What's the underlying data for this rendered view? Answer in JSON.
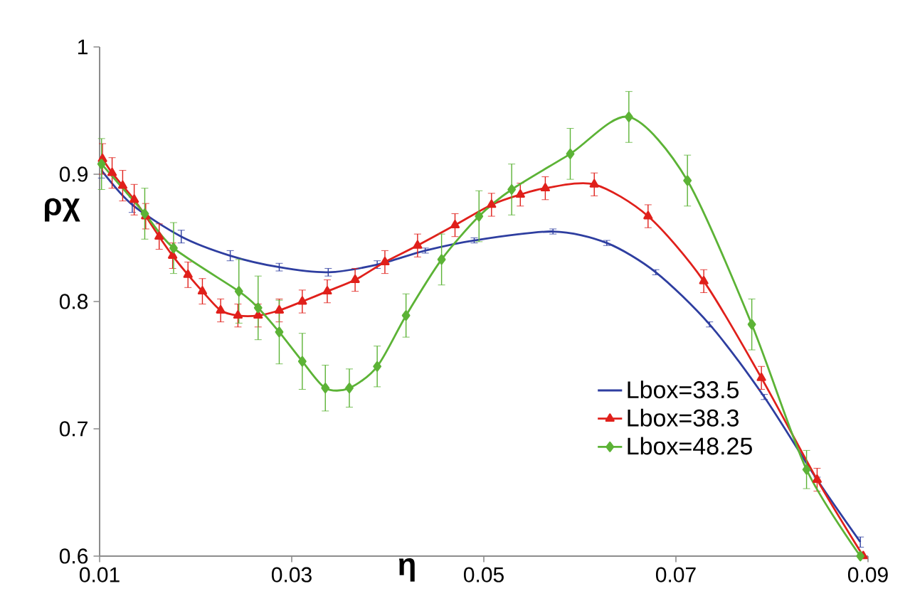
{
  "chart_data": {
    "type": "line",
    "xlabel": "η",
    "ylabel": "ρχ",
    "xlim": [
      0.01,
      0.09
    ],
    "xticks": [
      0.01,
      0.03,
      0.05,
      0.07,
      0.09
    ],
    "ylim": [
      0.6,
      1
    ],
    "yticks": [
      0.6,
      0.7,
      0.8,
      0.9,
      1
    ],
    "legend": "right",
    "grid": false,
    "series": [
      {
        "name": "Lbox=33.5",
        "color": "#2e3ea0",
        "marker": "none",
        "x": [
          0.0102,
          0.0134,
          0.0185,
          0.0236,
          0.0287,
          0.0338,
          0.0389,
          0.0439,
          0.049,
          0.0572,
          0.0628,
          0.0679,
          0.0735,
          0.0792,
          0.0847,
          0.0892
        ],
        "values": [
          0.903,
          0.876,
          0.851,
          0.836,
          0.827,
          0.823,
          0.829,
          0.84,
          0.848,
          0.855,
          0.846,
          0.823,
          0.782,
          0.725,
          0.66,
          0.611
        ],
        "errors": [
          0.006,
          0.006,
          0.005,
          0.004,
          0.003,
          0.003,
          0.003,
          0.002,
          0.002,
          0.002,
          0.002,
          0.002,
          0.002,
          0.002,
          0.002,
          0.004
        ]
      },
      {
        "name": "Lbox=38.3",
        "color": "#e0201b",
        "marker": "triangle",
        "x": [
          0.0103,
          0.0113,
          0.0124,
          0.0136,
          0.0148,
          0.0162,
          0.0176,
          0.0192,
          0.0207,
          0.0226,
          0.0244,
          0.0265,
          0.0287,
          0.0311,
          0.0337,
          0.0366,
          0.0397,
          0.0431,
          0.047,
          0.0508,
          0.0538,
          0.0564,
          0.0615,
          0.0671,
          0.0729,
          0.0789,
          0.0847,
          0.0895
        ],
        "values": [
          0.912,
          0.901,
          0.891,
          0.88,
          0.867,
          0.851,
          0.836,
          0.821,
          0.808,
          0.793,
          0.789,
          0.789,
          0.793,
          0.8,
          0.808,
          0.817,
          0.831,
          0.844,
          0.86,
          0.876,
          0.884,
          0.889,
          0.892,
          0.867,
          0.816,
          0.74,
          0.66,
          0.6
        ],
        "errors": [
          0.012,
          0.012,
          0.012,
          0.012,
          0.01,
          0.01,
          0.01,
          0.01,
          0.01,
          0.009,
          0.009,
          0.009,
          0.009,
          0.009,
          0.009,
          0.009,
          0.009,
          0.009,
          0.009,
          0.009,
          0.009,
          0.009,
          0.009,
          0.009,
          0.009,
          0.009,
          0.009,
          null
        ]
      },
      {
        "name": "Lbox=48.25",
        "color": "#5cb336",
        "marker": "diamond",
        "x": [
          0.0102,
          0.0147,
          0.0177,
          0.0245,
          0.0265,
          0.0287,
          0.0311,
          0.0335,
          0.036,
          0.0389,
          0.0419,
          0.0456,
          0.0495,
          0.0529,
          0.059,
          0.0651,
          0.0712,
          0.0779,
          0.0836,
          0.0892
        ],
        "values": [
          0.908,
          0.869,
          0.842,
          0.808,
          0.795,
          0.776,
          0.753,
          0.732,
          0.732,
          0.749,
          0.789,
          0.833,
          0.867,
          0.888,
          0.916,
          0.945,
          0.895,
          0.782,
          0.668,
          0.6
        ],
        "errors": [
          0.02,
          0.02,
          0.02,
          0.025,
          0.025,
          0.025,
          0.022,
          0.018,
          0.015,
          0.016,
          0.017,
          0.02,
          0.02,
          0.02,
          0.02,
          0.02,
          0.02,
          0.02,
          0.015,
          null
        ]
      }
    ]
  }
}
